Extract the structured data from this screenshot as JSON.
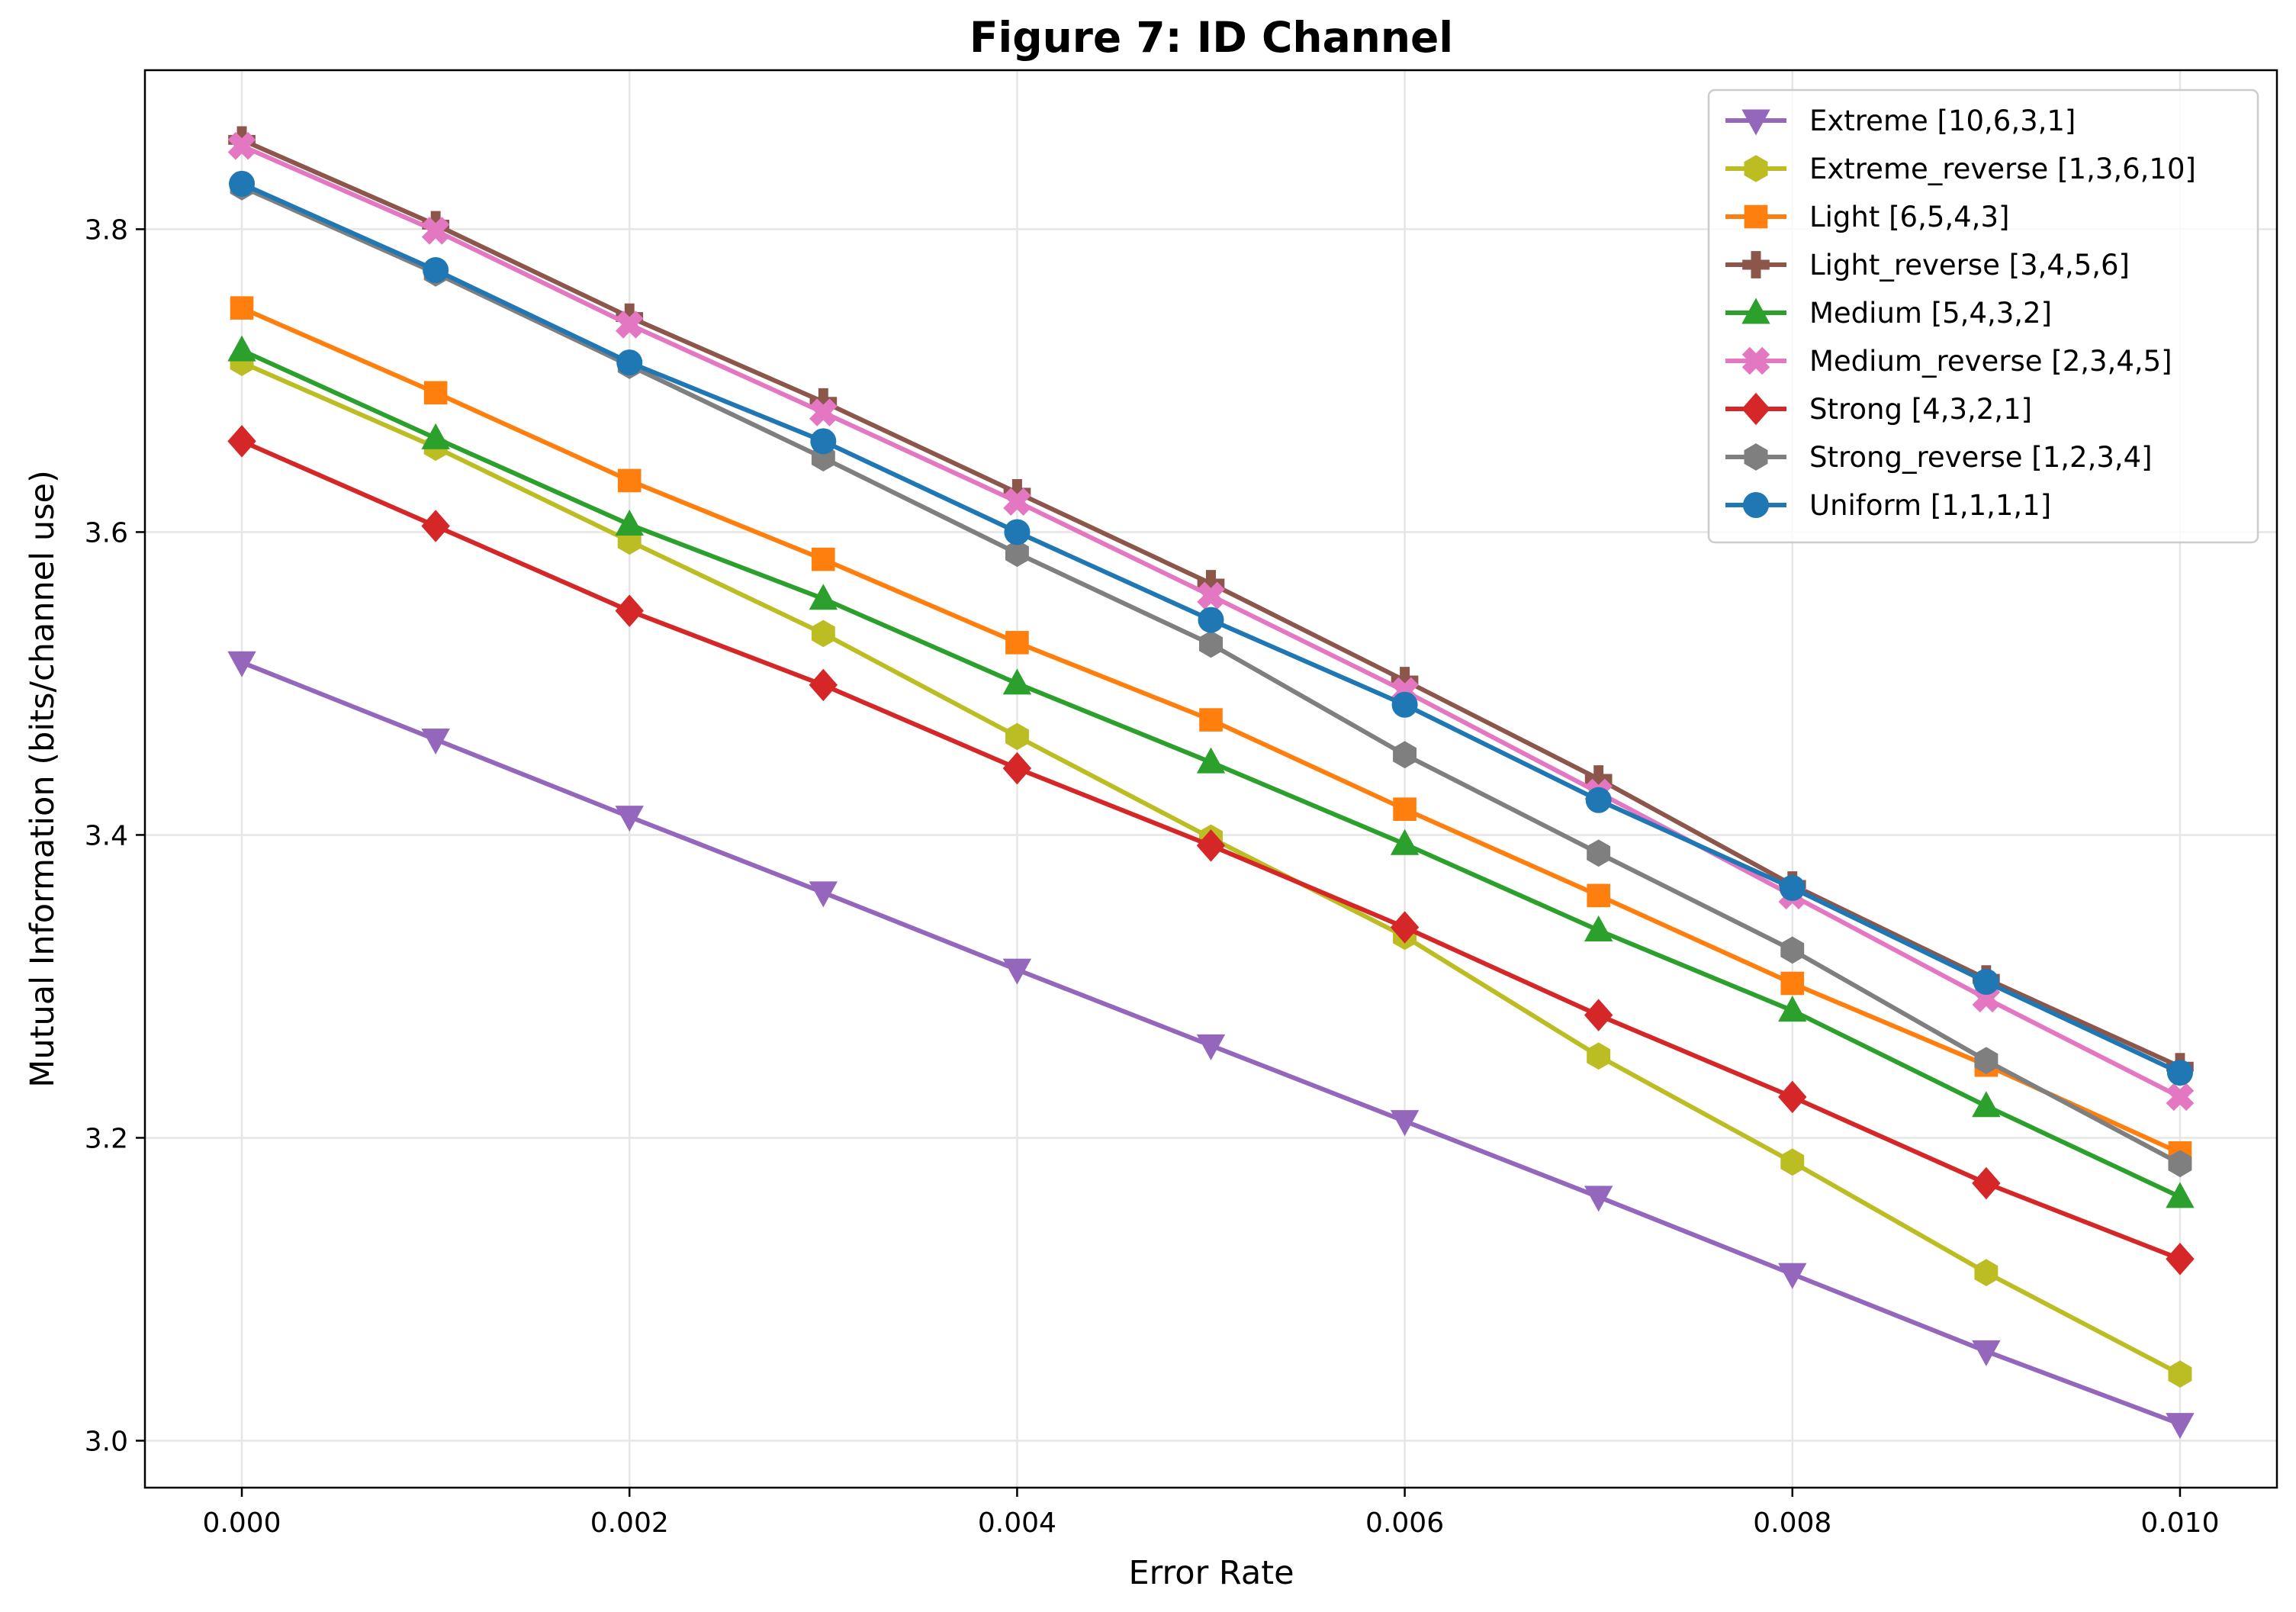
{
  "chart_data": {
    "type": "line",
    "title": "Figure 7: ID Channel",
    "xlabel": "Error Rate",
    "ylabel": "Mutual Information (bits/channel use)",
    "xlim": [
      -0.0005,
      0.0105
    ],
    "ylim": [
      2.969,
      3.905
    ],
    "x_ticks": [
      "0.000",
      "0.002",
      "0.004",
      "0.006",
      "0.008",
      "0.010"
    ],
    "x_tick_values": [
      0,
      0.002,
      0.004,
      0.006,
      0.008,
      0.01
    ],
    "y_ticks": [
      "3.0",
      "3.2",
      "3.4",
      "3.6",
      "3.8"
    ],
    "y_tick_values": [
      3.0,
      3.2,
      3.4,
      3.6,
      3.8
    ],
    "grid": true,
    "legend_position": "top-right",
    "x": [
      0,
      0.001,
      0.002,
      0.003,
      0.004,
      0.005,
      0.006,
      0.007,
      0.008,
      0.009,
      0.01
    ],
    "series": [
      {
        "name": "Extreme [10,6,3,1]",
        "color": "#9467bd",
        "marker": "triangle-down",
        "values": [
          3.514,
          3.463,
          3.412,
          3.362,
          3.311,
          3.261,
          3.211,
          3.161,
          3.11,
          3.059,
          3.011
        ]
      },
      {
        "name": "Extreme_reverse [1,3,6,10]",
        "color": "#bcbd22",
        "marker": "hexagon",
        "values": [
          3.712,
          3.656,
          3.594,
          3.533,
          3.465,
          3.398,
          3.333,
          3.254,
          3.184,
          3.111,
          3.044
        ]
      },
      {
        "name": "Light [6,5,4,3]",
        "color": "#ff7f0e",
        "marker": "square",
        "values": [
          3.748,
          3.692,
          3.634,
          3.582,
          3.527,
          3.476,
          3.417,
          3.36,
          3.302,
          3.248,
          3.19
        ]
      },
      {
        "name": "Light_reverse [3,4,5,6]",
        "color": "#8c564b",
        "marker": "plus",
        "values": [
          3.859,
          3.803,
          3.742,
          3.686,
          3.626,
          3.566,
          3.502,
          3.437,
          3.367,
          3.305,
          3.247
        ]
      },
      {
        "name": "Medium [5,4,3,2]",
        "color": "#2ca02c",
        "marker": "triangle-up",
        "values": [
          3.72,
          3.662,
          3.605,
          3.556,
          3.5,
          3.448,
          3.394,
          3.337,
          3.284,
          3.221,
          3.161
        ]
      },
      {
        "name": "Medium_reverse [2,3,4,5]",
        "color": "#e377c2",
        "marker": "x",
        "values": [
          3.855,
          3.799,
          3.737,
          3.679,
          3.62,
          3.558,
          3.495,
          3.428,
          3.36,
          3.292,
          3.227
        ]
      },
      {
        "name": "Strong [4,3,2,1]",
        "color": "#d62728",
        "marker": "diamond",
        "values": [
          3.66,
          3.604,
          3.548,
          3.499,
          3.444,
          3.393,
          3.339,
          3.281,
          3.227,
          3.17,
          3.12
        ]
      },
      {
        "name": "Strong_reverse [1,2,3,4]",
        "color": "#7f7f7f",
        "marker": "hexagon",
        "values": [
          3.828,
          3.771,
          3.71,
          3.649,
          3.586,
          3.526,
          3.453,
          3.388,
          3.324,
          3.251,
          3.183
        ]
      },
      {
        "name": "Uniform [1,1,1,1]",
        "color": "#1f77b4",
        "marker": "circle",
        "values": [
          3.83,
          3.773,
          3.712,
          3.66,
          3.6,
          3.542,
          3.486,
          3.423,
          3.365,
          3.303,
          3.243
        ]
      }
    ]
  }
}
